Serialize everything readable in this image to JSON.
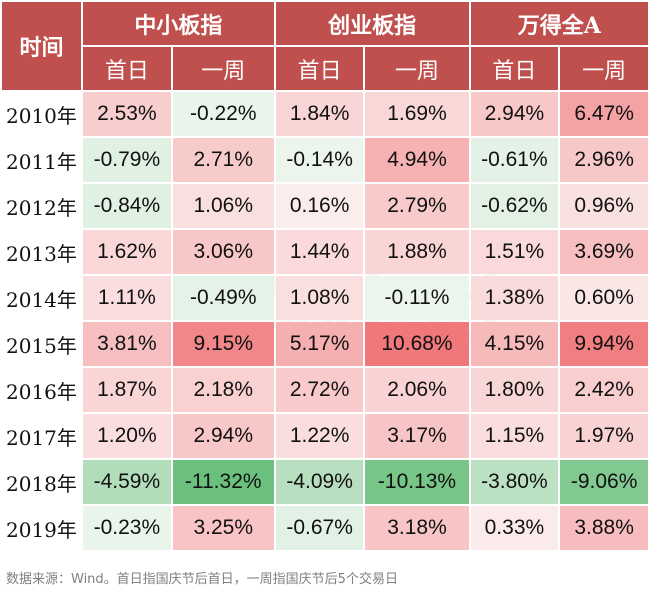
{
  "chart_data": {
    "type": "table",
    "header": {
      "time_label": "时间",
      "groups": [
        "中小板指",
        "创业板指",
        "万得全A"
      ],
      "subcols": [
        "首日",
        "一周",
        "首日",
        "一周",
        "首日",
        "一周"
      ]
    },
    "rows": [
      {
        "year": "2010年",
        "cells": [
          "2.53%",
          "-0.22%",
          "1.84%",
          "1.69%",
          "2.94%",
          "6.47%"
        ]
      },
      {
        "year": "2011年",
        "cells": [
          "-0.79%",
          "2.71%",
          "-0.14%",
          "4.94%",
          "-0.61%",
          "2.96%"
        ]
      },
      {
        "year": "2012年",
        "cells": [
          "-0.84%",
          "1.06%",
          "0.16%",
          "2.79%",
          "-0.62%",
          "0.96%"
        ]
      },
      {
        "year": "2013年",
        "cells": [
          "1.62%",
          "3.06%",
          "1.44%",
          "1.88%",
          "1.51%",
          "3.69%"
        ]
      },
      {
        "year": "2014年",
        "cells": [
          "1.11%",
          "-0.49%",
          "1.08%",
          "-0.11%",
          "1.38%",
          "0.60%"
        ]
      },
      {
        "year": "2015年",
        "cells": [
          "3.81%",
          "9.15%",
          "5.17%",
          "10.68%",
          "4.15%",
          "9.94%"
        ]
      },
      {
        "year": "2016年",
        "cells": [
          "1.87%",
          "2.18%",
          "2.72%",
          "2.06%",
          "1.80%",
          "2.42%"
        ]
      },
      {
        "year": "2017年",
        "cells": [
          "1.20%",
          "2.94%",
          "1.22%",
          "3.17%",
          "1.15%",
          "1.97%"
        ]
      },
      {
        "year": "2018年",
        "cells": [
          "-4.59%",
          "-11.32%",
          "-4.09%",
          "-10.13%",
          "-3.80%",
          "-9.06%"
        ]
      },
      {
        "year": "2019年",
        "cells": [
          "-0.23%",
          "3.25%",
          "-0.67%",
          "3.18%",
          "0.33%",
          "3.88%"
        ]
      }
    ],
    "colors": {
      "header_bg": "#c0504d",
      "positive_max": "#f0787a",
      "negative_max": "#6cc07e",
      "neutral": "#ffffff"
    }
  },
  "watermark": "Wind",
  "source_note": "数据来源：Wind。首日指国庆节后首日，一周指国庆节后5个交易日"
}
